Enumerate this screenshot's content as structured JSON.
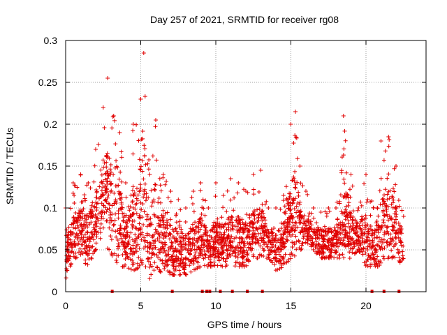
{
  "chart_data": {
    "type": "scatter",
    "title": "Day 257 of 2021, SRMTID for receiver rg08",
    "xlabel": "GPS time / hours",
    "ylabel": "SRMTID / TECUs",
    "xlim": [
      0,
      24
    ],
    "ylim": [
      0,
      0.3
    ],
    "xticks": [
      0,
      5,
      10,
      15,
      20
    ],
    "yticks": [
      0,
      0.05,
      0.1,
      0.15,
      0.2,
      0.25,
      0.3
    ],
    "xtick_labels": [
      "0",
      "5",
      "10",
      "15",
      "20"
    ],
    "ytick_labels": [
      "0",
      "0.05",
      "0.1",
      "0.15",
      "0.2",
      "0.25",
      "0.3"
    ],
    "grid": true,
    "marker": "+",
    "color": "#e00000",
    "data_range_hours": [
      0,
      22.5
    ],
    "zero_markers_x": [
      3.1,
      7.1,
      9.1,
      9.4,
      9.6,
      10.3,
      11.1,
      12.1,
      13.1,
      20.4,
      21.2,
      22.2
    ],
    "envelope": {
      "x": [
        0,
        0.5,
        1.0,
        1.5,
        2.0,
        2.5,
        2.8,
        3.2,
        3.6,
        4.0,
        4.5,
        5.0,
        5.2,
        5.6,
        6.0,
        6.5,
        7.0,
        7.5,
        8.0,
        8.5,
        9.0,
        9.5,
        10.0,
        10.5,
        11.0,
        11.5,
        12.0,
        12.5,
        13.0,
        13.5,
        14.0,
        14.5,
        15.0,
        15.3,
        15.6,
        16.0,
        16.5,
        17.0,
        17.5,
        18.0,
        18.5,
        19.0,
        19.5,
        20.0,
        20.5,
        21.0,
        21.5,
        22.0,
        22.5
      ],
      "ymin": [
        0.015,
        0.04,
        0.04,
        0.03,
        0.05,
        0.07,
        0.05,
        0.04,
        0.03,
        0.03,
        0.025,
        0.03,
        0.03,
        0.015,
        0.03,
        0.02,
        0.02,
        0.02,
        0.02,
        0.025,
        0.03,
        0.03,
        0.03,
        0.03,
        0.03,
        0.03,
        0.03,
        0.04,
        0.04,
        0.04,
        0.025,
        0.03,
        0.04,
        0.04,
        0.05,
        0.05,
        0.05,
        0.04,
        0.04,
        0.04,
        0.04,
        0.04,
        0.05,
        0.03,
        0.03,
        0.03,
        0.04,
        0.04,
        0.03
      ],
      "ymax": [
        0.1,
        0.13,
        0.14,
        0.13,
        0.17,
        0.22,
        0.255,
        0.21,
        0.19,
        0.13,
        0.2,
        0.23,
        0.285,
        0.14,
        0.205,
        0.14,
        0.12,
        0.11,
        0.1,
        0.12,
        0.13,
        0.1,
        0.13,
        0.115,
        0.135,
        0.13,
        0.12,
        0.14,
        0.145,
        0.1,
        0.1,
        0.115,
        0.2,
        0.215,
        0.15,
        0.12,
        0.1,
        0.095,
        0.1,
        0.1,
        0.21,
        0.14,
        0.1,
        0.14,
        0.1,
        0.18,
        0.185,
        0.15,
        0.09
      ]
    }
  }
}
